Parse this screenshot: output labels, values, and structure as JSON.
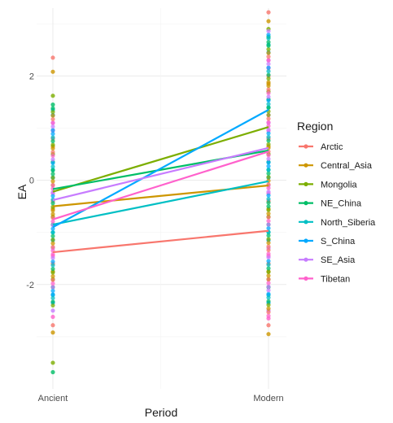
{
  "chart_data": {
    "type": "line",
    "title": "",
    "xlabel": "Period",
    "ylabel": "EA",
    "categories": [
      "Ancient",
      "Modern"
    ],
    "ylim": [
      -4.0,
      3.3
    ],
    "yticks": [
      -2,
      0,
      2
    ],
    "grid": true,
    "legend": {
      "title": "Region",
      "position": "right"
    },
    "series": [
      {
        "name": "Arctic",
        "color": "#F8766D",
        "values": [
          -1.38,
          -0.97
        ]
      },
      {
        "name": "Central_Asia",
        "color": "#CD9600",
        "values": [
          -0.5,
          -0.1
        ]
      },
      {
        "name": "Mongolia",
        "color": "#7CAE00",
        "values": [
          -0.22,
          1.02
        ]
      },
      {
        "name": "NE_China",
        "color": "#00BE67",
        "values": [
          -0.17,
          0.57
        ]
      },
      {
        "name": "North_Siberia",
        "color": "#00BFC4",
        "values": [
          -0.85,
          -0.02
        ]
      },
      {
        "name": "S_China",
        "color": "#00A9FF",
        "values": [
          -0.9,
          1.35
        ]
      },
      {
        "name": "SE_Asia",
        "color": "#C77CFF",
        "values": [
          -0.38,
          0.62
        ]
      },
      {
        "name": "Tibetan",
        "color": "#FF61CC",
        "values": [
          -0.75,
          0.55
        ]
      }
    ],
    "points": {
      "Ancient": [
        2.35,
        2.08,
        1.62,
        1.45,
        1.35,
        1.25,
        1.1,
        0.95,
        0.8,
        0.65,
        0.5,
        0.35,
        0.2,
        0.05,
        -0.1,
        -0.25,
        -0.4,
        -0.55,
        -0.7,
        -0.85,
        -1.0,
        -1.15,
        -1.3,
        -1.45,
        -1.6,
        -1.75,
        -1.9,
        -2.05,
        -2.2,
        -2.35,
        -2.5,
        -2.62,
        -2.78,
        -2.92,
        -3.5,
        -3.68
      ],
      "Modern": [
        3.22,
        3.05,
        2.9,
        2.75,
        2.6,
        2.45,
        2.3,
        2.15,
        2.0,
        1.85,
        1.7,
        1.55,
        1.4,
        1.25,
        1.1,
        0.95,
        0.8,
        0.65,
        0.5,
        0.35,
        0.2,
        0.05,
        -0.1,
        -0.25,
        -0.4,
        -0.55,
        -0.7,
        -0.85,
        -1.0,
        -1.15,
        -1.3,
        -1.45,
        -1.6,
        -1.75,
        -1.9,
        -2.05,
        -2.2,
        -2.35,
        -2.5,
        -2.65,
        -2.78,
        -2.95
      ]
    }
  }
}
